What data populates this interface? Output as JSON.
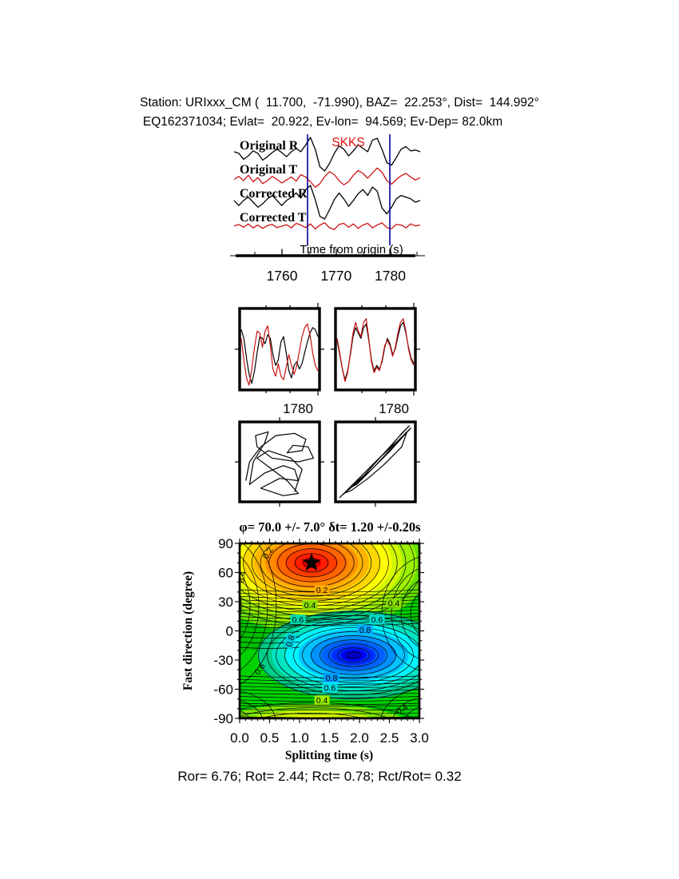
{
  "header": {
    "line1": "Station: URIxxx_CM (  11.700,  -71.990), BAZ=  22.253°, Dist=  144.992°",
    "line2": "EQ162371034; Evlat=  20.922, Ev-lon=  94.569; Ev-Dep= 82.0km"
  },
  "colors": {
    "trace_black": "#000000",
    "trace_red": "#cc1111",
    "window_line": "#000099",
    "phase_label_red": "#dd1111",
    "contour_base_green": "#00d200"
  },
  "footer": {
    "text": "Ror= 6.76; Rot= 2.44; Rct= 0.78; Rct/Rot= 0.32",
    "values": {
      "Ror": 6.76,
      "Rot": 2.44,
      "Rct": 0.78,
      "Rct_over_Rot": 0.32
    }
  },
  "chart_data": [
    {
      "id": "waveform-traces",
      "type": "line",
      "phase_label": "SKKS",
      "xlabel": "Time from origin (s)",
      "xticks": [
        1760,
        1770,
        1780
      ],
      "xticks_minor": [
        1755,
        1765,
        1775,
        1785
      ],
      "x_range_s": [
        1751,
        1786
      ],
      "analysis_window_s": [
        1765,
        1780
      ],
      "series": [
        {
          "name": "Original R",
          "color": "#000000",
          "values": [
            0.15,
            0.05,
            -0.3,
            -0.1,
            0.2,
            0.05,
            -0.35,
            -0.15,
            0.1,
            0.3,
            0.1,
            -0.15,
            0.15,
            0.35,
            0.15,
            0.55,
            1.0,
            0.3,
            -0.75,
            -1.0,
            -0.55,
            0.05,
            0.5,
            0.3,
            -0.1,
            0.2,
            0.55,
            0.35,
            0.15,
            0.85,
            0.95,
            0.3,
            -0.5,
            -0.65,
            -0.2,
            0.3,
            0.45,
            0.2,
            0.25,
            0.15
          ]
        },
        {
          "name": "Original T",
          "color": "#cc1111",
          "values": [
            -0.1,
            0.15,
            -0.2,
            0.25,
            -0.3,
            0.05,
            -0.45,
            -0.2,
            0.15,
            -0.1,
            -0.4,
            -0.15,
            0.1,
            -0.25,
            0.3,
            0.1,
            -0.3,
            -0.75,
            -0.45,
            0.15,
            0.55,
            0.3,
            -0.2,
            -0.55,
            -0.3,
            0.25,
            0.65,
            0.4,
            0.0,
            0.45,
            0.85,
            0.5,
            -0.2,
            -0.5,
            -0.1,
            0.2,
            0.4,
            0.1,
            -0.15,
            0.05
          ]
        },
        {
          "name": "Corrected R",
          "color": "#000000",
          "values": [
            0.1,
            -0.2,
            0.1,
            0.3,
            0.0,
            -0.3,
            -0.1,
            0.2,
            0.4,
            0.1,
            -0.2,
            0.1,
            0.3,
            0.55,
            0.25,
            0.75,
            1.0,
            0.15,
            -0.85,
            -1.0,
            -0.45,
            0.15,
            0.55,
            0.2,
            -0.25,
            0.1,
            0.5,
            0.75,
            0.4,
            0.9,
            0.65,
            -0.35,
            -0.7,
            -0.3,
            0.2,
            0.4,
            0.3,
            0.2,
            0.0,
            0.1
          ]
        },
        {
          "name": "Corrected T",
          "color": "#cc1111",
          "values": [
            0.05,
            0.3,
            -0.2,
            0.4,
            -0.3,
            0.2,
            -0.4,
            0.1,
            0.3,
            -0.25,
            0.0,
            0.25,
            -0.3,
            0.5,
            0.2,
            -0.25,
            0.4,
            -0.5,
            0.2,
            0.6,
            -0.3,
            -0.6,
            0.3,
            0.5,
            -0.2,
            0.4,
            -0.4,
            0.2,
            0.5,
            -0.3,
            0.2,
            0.6,
            -0.25,
            -0.45,
            0.3,
            0.2,
            -0.3,
            0.4,
            0.05,
            0.2
          ]
        }
      ]
    },
    {
      "id": "waveform-compare",
      "type": "line",
      "panels": [
        {
          "name": "original R vs T",
          "xtick_label": "1780",
          "series": [
            {
              "name": "R",
              "color": "#000000",
              "values": [
                0.55,
                0.3,
                -0.25,
                -0.7,
                -0.95,
                -0.6,
                -0.1,
                0.35,
                0.3,
                0.15,
                0.4,
                0.3,
                -0.15,
                -0.45,
                -0.3,
                0.2,
                0.35,
                -0.1,
                -0.6,
                -0.8,
                -0.45,
                -0.35,
                -0.55,
                -0.4,
                -0.1,
                0.2,
                0.45,
                0.6,
                0.55,
                0.35
              ]
            },
            {
              "name": "T",
              "color": "#cc1111",
              "values": [
                0.3,
                -0.3,
                -0.8,
                -1.0,
                -0.55,
                0.05,
                0.5,
                0.45,
                0.05,
                0.5,
                0.65,
                0.1,
                -0.55,
                -0.75,
                -0.4,
                -0.75,
                -0.85,
                -0.5,
                -0.15,
                -0.45,
                -0.7,
                -0.45,
                -0.05,
                0.35,
                0.6,
                0.7,
                0.4,
                -0.1,
                -0.45,
                -0.6
              ]
            }
          ]
        },
        {
          "name": "corrected R vs T",
          "xtick_label": "1780",
          "series": [
            {
              "name": "R",
              "color": "#000000",
              "values": [
                0.25,
                -0.15,
                -0.55,
                -0.85,
                -0.6,
                -0.15,
                0.35,
                0.6,
                0.45,
                0.3,
                0.6,
                0.7,
                0.25,
                -0.3,
                -0.6,
                -0.45,
                -0.55,
                -0.35,
                0.05,
                0.3,
                0.15,
                -0.15,
                0.0,
                0.35,
                0.65,
                0.75,
                0.45,
                0.05,
                -0.25,
                -0.4
              ]
            },
            {
              "name": "T",
              "color": "#cc1111",
              "values": [
                0.3,
                -0.1,
                -0.55,
                -0.9,
                -0.65,
                -0.1,
                0.45,
                0.75,
                0.5,
                0.35,
                0.75,
                0.85,
                0.3,
                -0.35,
                -0.65,
                -0.5,
                -0.6,
                -0.3,
                0.1,
                0.25,
                0.1,
                -0.2,
                0.05,
                0.45,
                0.75,
                0.85,
                0.5,
                0.0,
                -0.3,
                -0.45
              ]
            }
          ]
        }
      ]
    },
    {
      "id": "particle-motion",
      "type": "path",
      "panels": [
        {
          "name": "original particle motion",
          "color": "#000000",
          "points": [
            [
              0.05,
              0.75
            ],
            [
              0.1,
              0.5
            ],
            [
              0.25,
              0.3
            ],
            [
              0.45,
              0.15
            ],
            [
              0.7,
              0.12
            ],
            [
              0.85,
              0.2
            ],
            [
              0.8,
              0.35
            ],
            [
              0.6,
              0.38
            ],
            [
              0.68,
              0.28
            ],
            [
              0.88,
              0.3
            ],
            [
              0.95,
              0.45
            ],
            [
              0.75,
              0.5
            ],
            [
              0.4,
              0.45
            ],
            [
              0.2,
              0.3
            ],
            [
              0.18,
              0.15
            ],
            [
              0.35,
              0.1
            ],
            [
              0.3,
              0.25
            ],
            [
              0.15,
              0.5
            ],
            [
              0.1,
              0.8
            ],
            [
              0.3,
              0.65
            ],
            [
              0.55,
              0.55
            ],
            [
              0.7,
              0.6
            ],
            [
              0.75,
              0.75
            ],
            [
              0.5,
              0.72
            ],
            [
              0.25,
              0.85
            ],
            [
              0.55,
              0.95
            ],
            [
              0.75,
              0.92
            ],
            [
              0.6,
              0.75
            ],
            [
              0.4,
              0.6
            ],
            [
              0.2,
              0.45
            ],
            [
              0.35,
              0.35
            ],
            [
              0.65,
              0.45
            ],
            [
              0.8,
              0.6
            ],
            [
              0.7,
              0.9
            ]
          ]
        },
        {
          "name": "corrected particle motion",
          "color": "#000000",
          "points": [
            [
              0.02,
              0.98
            ],
            [
              0.2,
              0.8
            ],
            [
              0.45,
              0.55
            ],
            [
              0.7,
              0.3
            ],
            [
              0.85,
              0.12
            ],
            [
              0.95,
              0.02
            ],
            [
              0.8,
              0.18
            ],
            [
              0.6,
              0.4
            ],
            [
              0.35,
              0.68
            ],
            [
              0.15,
              0.85
            ],
            [
              0.25,
              0.8
            ],
            [
              0.5,
              0.55
            ],
            [
              0.75,
              0.28
            ],
            [
              0.92,
              0.1
            ],
            [
              0.85,
              0.3
            ],
            [
              0.6,
              0.55
            ],
            [
              0.4,
              0.72
            ],
            [
              0.18,
              0.88
            ],
            [
              0.08,
              0.92
            ],
            [
              0.3,
              0.7
            ],
            [
              0.55,
              0.45
            ],
            [
              0.8,
              0.22
            ],
            [
              0.97,
              0.05
            ],
            [
              0.7,
              0.35
            ],
            [
              0.45,
              0.6
            ],
            [
              0.25,
              0.78
            ],
            [
              0.05,
              0.95
            ]
          ]
        }
      ]
    },
    {
      "id": "error-surface",
      "type": "contour",
      "title": "φ= 70.0 +/- 7.0° δt= 1.20 +/-0.20s",
      "xlabel": "Splitting time (s)",
      "ylabel": "Fast direction (degree)",
      "xlim": [
        0.0,
        3.0
      ],
      "ylim": [
        -90,
        90
      ],
      "xticks": [
        "0.0",
        "0.5",
        "1.0",
        "1.5",
        "2.0",
        "2.5",
        "3.0"
      ],
      "yticks": [
        "90",
        "60",
        "30",
        "0",
        "-30",
        "-60",
        "-90"
      ],
      "grid": false,
      "best_fit": {
        "phi_deg": 70.0,
        "phi_err_deg": 7.0,
        "dt_s": 1.2,
        "dt_err_s": 0.2,
        "marker": "star",
        "at_xy": [
          1.2,
          70
        ]
      },
      "error_minimum_at_xy": [
        1.9,
        -25
      ],
      "colormap_hot_to_cold": [
        "#ff0000",
        "#ff8c00",
        "#ffff00",
        "#80ee00",
        "#00d200",
        "#00ffff",
        "#0080ff",
        "#0000ff"
      ],
      "contour_labels": [
        {
          "text": "0.2",
          "fx": 0.458,
          "fy": 0.265,
          "bg": "#ffaa00",
          "rot": 0
        },
        {
          "text": "0.4",
          "fx": 0.391,
          "fy": 0.352,
          "bg": "#88dd00",
          "rot": 0
        },
        {
          "text": "0.6",
          "fx": 0.324,
          "fy": 0.434,
          "bg": "#00ddb0",
          "rot": 0
        },
        {
          "text": "0.6",
          "fx": 0.764,
          "fy": 0.434,
          "bg": "#00ddd0",
          "rot": 0
        },
        {
          "text": "0.4",
          "fx": 0.858,
          "fy": 0.342,
          "bg": "#88dd00",
          "rot": 0
        },
        {
          "text": "0.8",
          "fx": 0.698,
          "fy": 0.493,
          "bg": "#00aaff",
          "rot": 0
        },
        {
          "text": "0.8",
          "fx": 0.28,
          "fy": 0.557,
          "bg": "#00ccdd",
          "rot": -72
        },
        {
          "text": "0.8",
          "fx": 0.511,
          "fy": 0.767,
          "bg": "#0099ff",
          "rot": 0
        },
        {
          "text": "0.6",
          "fx": 0.502,
          "fy": 0.826,
          "bg": "#00dde0",
          "rot": 0
        },
        {
          "text": "0.4",
          "fx": 0.458,
          "fy": 0.895,
          "bg": "#99ee00",
          "rot": 0
        },
        {
          "text": "0.6",
          "fx": 0.111,
          "fy": 0.717,
          "bg": null,
          "rot": -55
        },
        {
          "text": "0.2",
          "fx": 0.156,
          "fy": 0.055,
          "bg": null,
          "rot": -60
        },
        {
          "text": "0.4",
          "fx": 0.013,
          "fy": 0.192,
          "bg": null,
          "rot": -80
        },
        {
          "text": "0.4",
          "fx": 0.902,
          "fy": 0.945,
          "bg": null,
          "rot": -30
        }
      ]
    }
  ]
}
